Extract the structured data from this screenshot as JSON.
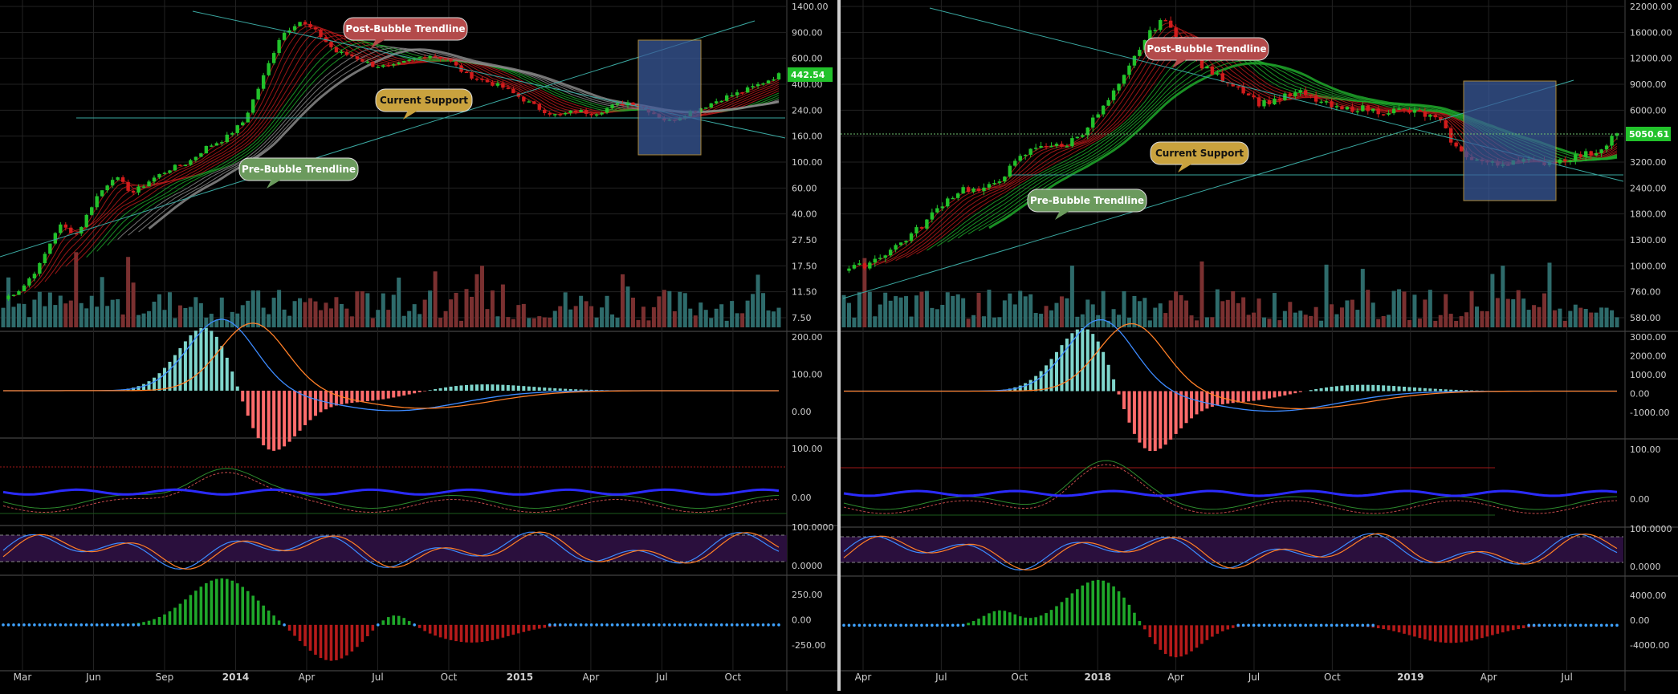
{
  "chart_data": [
    {
      "type": "candlestick",
      "scale": "log",
      "x_labels": [
        "Mar",
        "Jun",
        "Sep",
        "2014",
        "Apr",
        "Jul",
        "Oct",
        "2015",
        "Apr",
        "Jul",
        "Oct"
      ],
      "price_ticks": [
        "1400.00",
        "900.00",
        "600.00",
        "400.00",
        "240.00",
        "160.00",
        "100.00",
        "60.00",
        "40.00",
        "27.50",
        "17.50",
        "11.50",
        "7.50"
      ],
      "last_price": "442.54",
      "annotations": [
        "Post-Bubble Trendline",
        "Current Support",
        "Pre-Bubble Trendline"
      ],
      "close_path": [
        10,
        12,
        18,
        35,
        30,
        55,
        80,
        60,
        75,
        90,
        100,
        130,
        150,
        200,
        400,
        850,
        1100,
        900,
        650,
        600,
        520,
        500,
        560,
        620,
        580,
        450,
        400,
        360,
        300,
        250,
        220,
        240,
        230,
        260,
        280,
        240,
        200,
        230,
        260,
        300,
        330,
        380,
        440
      ],
      "macd_ticks": [
        "200.00",
        "100.00",
        "0.00"
      ],
      "rsi_ticks": [
        "100.00",
        "0.00"
      ],
      "stoch_ticks": [
        "100.0000",
        "0.0000"
      ],
      "osc_ticks": [
        "250.00",
        "0.00",
        "-250.00"
      ]
    },
    {
      "type": "candlestick",
      "scale": "log",
      "x_labels": [
        "Apr",
        "Jul",
        "Oct",
        "2018",
        "Apr",
        "Jul",
        "Oct",
        "2019",
        "Apr",
        "Jul"
      ],
      "price_ticks": [
        "22000.00",
        "16000.00",
        "12000.00",
        "9000.00",
        "6000.00",
        "4400.00",
        "3200.00",
        "2400.00",
        "1800.00",
        "1300.00",
        "1000.00",
        "760.00",
        "580.00"
      ],
      "last_price": "5050.61",
      "annotations": [
        "Post-Bubble Trendline",
        "Current Support",
        "Pre-Bubble Trendline"
      ],
      "close_path": [
        1000,
        1050,
        1200,
        1400,
        1700,
        2200,
        2600,
        2500,
        3000,
        3800,
        4400,
        4200,
        5000,
        6500,
        9000,
        14000,
        19000,
        15000,
        11000,
        9500,
        8500,
        7000,
        7500,
        8000,
        7200,
        6500,
        6700,
        6400,
        6500,
        6300,
        5800,
        4000,
        3600,
        3400,
        3700,
        3500,
        3600,
        3800,
        4000,
        5050
      ],
      "macd_ticks": [
        "3000.00",
        "2000.00",
        "1000.00",
        "0.00",
        "-1000.00"
      ],
      "rsi_ticks": [
        "100.00",
        "0.00"
      ],
      "stoch_ticks": [
        "100.0000",
        "0.0000"
      ],
      "osc_ticks": [
        "4000.00",
        "0.00",
        "-4000.00"
      ]
    }
  ],
  "colors": {
    "background": "#000000",
    "up": "#22c22b",
    "down": "#d21c1c",
    "grid": "#222222",
    "volume_up": "#2e6b6b",
    "volume_down": "#7a3030",
    "macd": "#3d8bff",
    "signal": "#ff7f27",
    "price_badge": "#22c22b",
    "box": "#3a5a9a",
    "box_border": "#e6b64a",
    "trendline": "#3aa7a0"
  }
}
